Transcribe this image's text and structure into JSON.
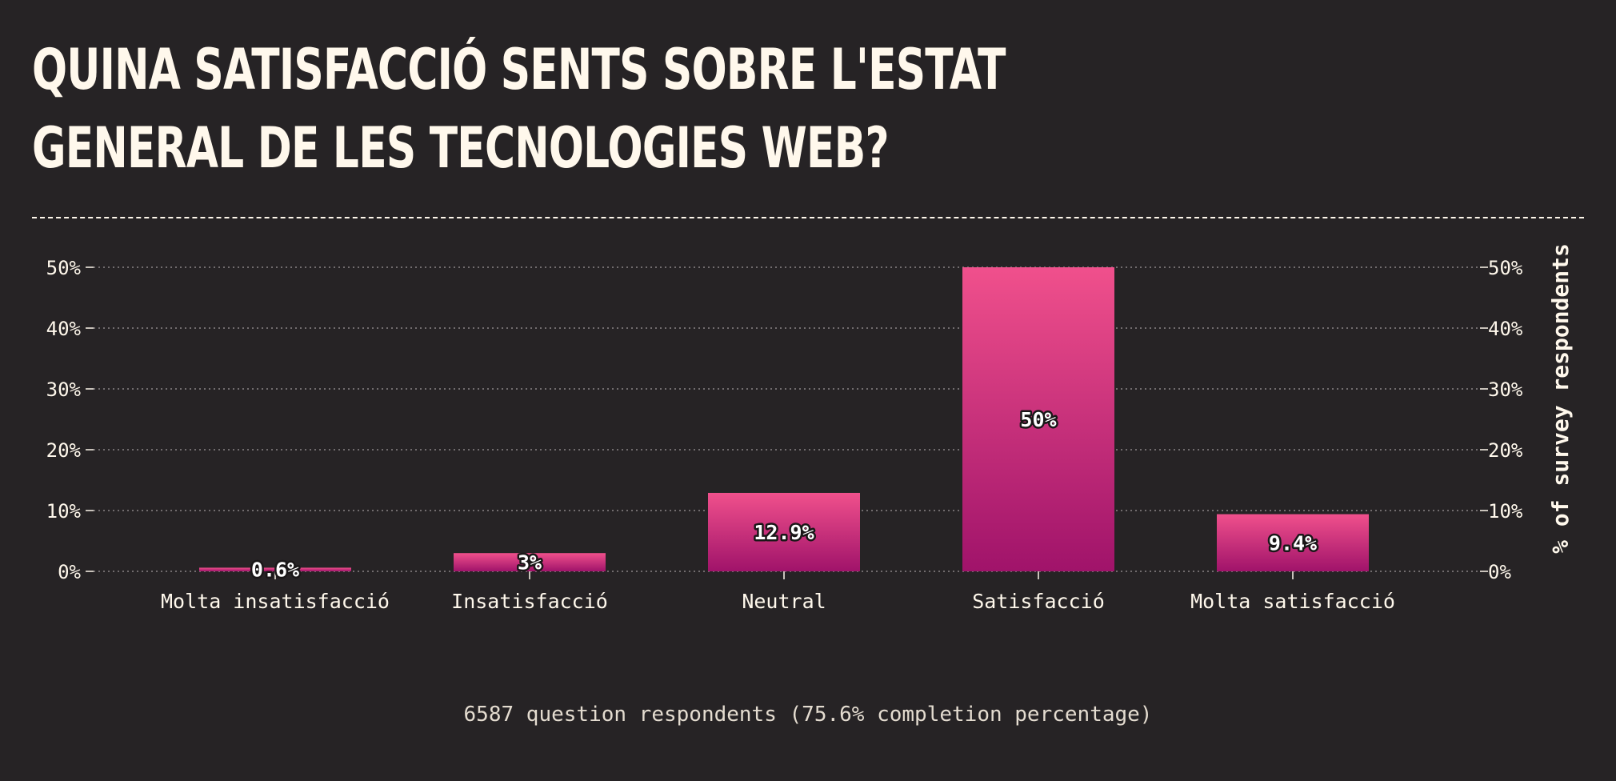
{
  "header": {
    "title": "QUINA SATISFACCIÓ SENTS SOBRE L'ESTAT GENERAL DE LES TECNOLOGIES WEB?"
  },
  "footer": {
    "respondents_note": "6587 question respondents (75.6% completion percentage)"
  },
  "colors": {
    "background": "#262325",
    "text": "#fff8ec",
    "bar_top": "#f0508c",
    "bar_bottom": "#a0136a"
  },
  "chart_data": {
    "type": "bar",
    "title": "QUINA SATISFACCIÓ SENTS SOBRE L'ESTAT GENERAL DE LES TECNOLOGIES WEB?",
    "categories": [
      "Molta insatisfacció",
      "Insatisfacció",
      "Neutral",
      "Satisfacció",
      "Molta satisfacció"
    ],
    "values": [
      0.6,
      3,
      12.9,
      50,
      9.4
    ],
    "value_labels": [
      "0.6%",
      "3%",
      "12.9%",
      "50%",
      "9.4%"
    ],
    "ylabel": "% of survey respondents",
    "ylim": [
      0,
      50
    ],
    "yticks": [
      0,
      10,
      20,
      30,
      40,
      50
    ],
    "ytick_labels": [
      "0%",
      "10%",
      "20%",
      "30%",
      "40%",
      "50%"
    ],
    "grid": true,
    "y_axis_sides": [
      "left",
      "right"
    ]
  }
}
